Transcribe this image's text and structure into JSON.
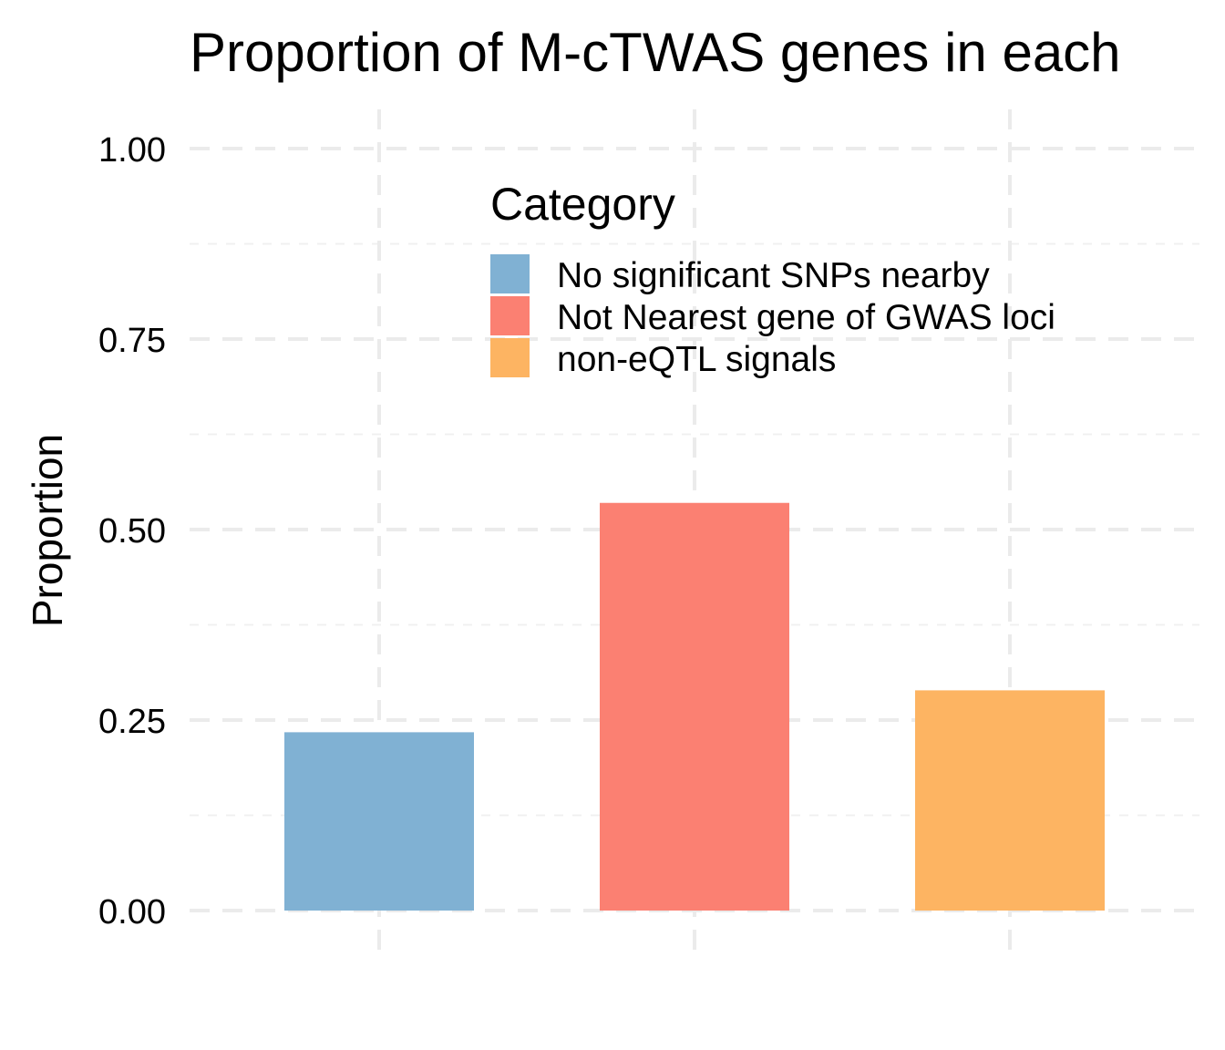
{
  "chart_data": {
    "type": "bar",
    "title": "Proportion of M-cTWAS genes in each",
    "xlabel": "",
    "ylabel": "Proportion",
    "ylim": [
      0,
      1
    ],
    "yticks": [
      "0.00",
      "0.25",
      "0.50",
      "0.75",
      "1.00"
    ],
    "ytick_values": [
      0,
      0.25,
      0.5,
      0.75,
      1.0
    ],
    "categories": [
      "No significant SNPs nearby",
      "Not Nearest gene of GWAS loci",
      "non-eQTL signals"
    ],
    "values": [
      0.234,
      0.535,
      0.289
    ],
    "colors": [
      "#80B1D3",
      "#FB8072",
      "#FDB462"
    ],
    "grid": true,
    "legend": {
      "title": "Category",
      "position": "top-right",
      "entries": [
        {
          "label": "No significant SNPs nearby",
          "color": "#80B1D3"
        },
        {
          "label": "Not Nearest gene of GWAS loci",
          "color": "#FB8072"
        },
        {
          "label": "non-eQTL signals",
          "color": "#FDB462"
        }
      ]
    }
  }
}
